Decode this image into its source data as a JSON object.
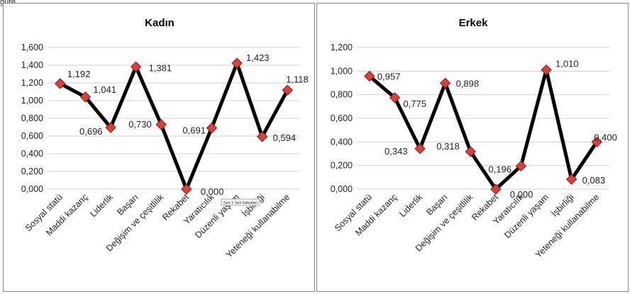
{
  "figure_label": "gure",
  "tooltip": "Seri 1 Veri Etiketleri",
  "colors": {
    "line": "#000000",
    "marker": "#d9413a",
    "grid": "#d0d0d0"
  },
  "chart_data": [
    {
      "type": "line",
      "title": "Kadın",
      "categories": [
        "Sosyal statü",
        "Maddi kazanç",
        "Liderlik",
        "Başarı",
        "Değişim ve çeşitlilik",
        "Rekabet",
        "Yaratıcılık",
        "Düzenli yaşam",
        "İşbirliği",
        "Yeteneği kullanabilme"
      ],
      "values": [
        1.192,
        1.041,
        0.696,
        1.381,
        0.73,
        0.0,
        0.691,
        1.423,
        0.594,
        1.118
      ],
      "value_labels": [
        "1,192",
        "1,041",
        "0,696",
        "1,381",
        "0,730",
        "0,000",
        "0,691",
        "1,423",
        "0,594",
        "1,118"
      ],
      "ylim": [
        0,
        1.6
      ],
      "yticks": [
        "0,000",
        "0,200",
        "0,400",
        "0,600",
        "0,800",
        "1,000",
        "1,200",
        "1,400",
        "1,600"
      ],
      "grid": true,
      "legend": "none"
    },
    {
      "type": "line",
      "title": "Erkek",
      "categories": [
        "Sosyal statü",
        "Maddi kazanç",
        "Liderlik",
        "Başarı",
        "Değişim ve çeşitlilik",
        "Rekabet",
        "Yaratıcılık",
        "Düzenli yaşam",
        "İşbirliği",
        "Yeteneği kullanabilme"
      ],
      "values": [
        0.957,
        0.775,
        0.343,
        0.898,
        0.318,
        0.0,
        0.196,
        1.01,
        0.083,
        0.4
      ],
      "value_labels": [
        "0,957",
        "0,775",
        "0,343",
        "0,898",
        "0,318",
        "0,000",
        "0,196",
        "1,010",
        "0,083",
        "0,400"
      ],
      "ylim": [
        0,
        1.2
      ],
      "yticks": [
        "0,000",
        "0,200",
        "0,400",
        "0,600",
        "0,800",
        "1,000",
        "1,200"
      ],
      "grid": true,
      "legend": "none"
    }
  ]
}
